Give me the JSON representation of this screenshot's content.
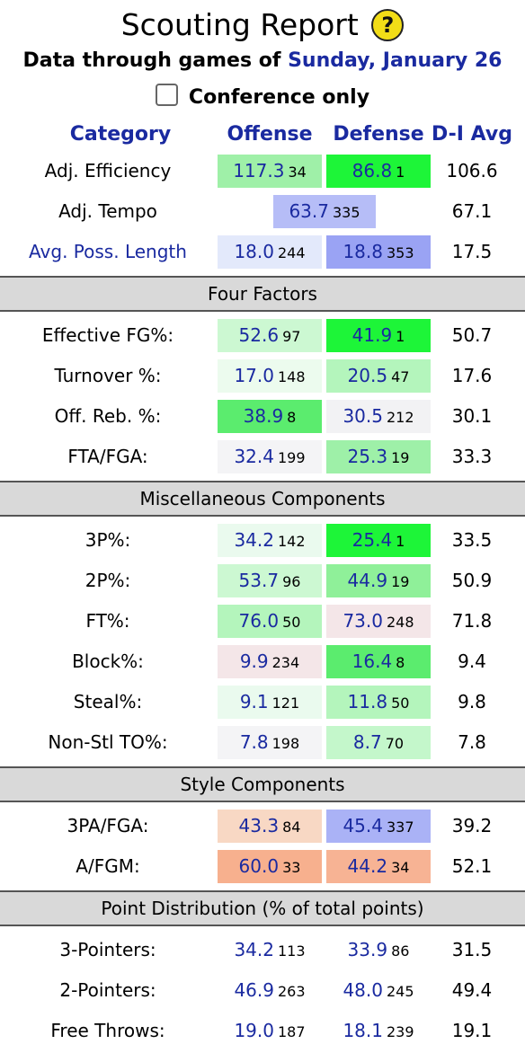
{
  "header": {
    "title": "Scouting Report",
    "help_icon": "question-icon",
    "subtitle_prefix": "Data through games of ",
    "subtitle_date": "Sunday, January 26",
    "conference_label": "Conference only",
    "conference_checked": false
  },
  "columns": {
    "category": "Category",
    "offense": "Offense",
    "defense": "Defense",
    "avg": "D-I Avg"
  },
  "summary_rows": [
    {
      "label": "Adj. Efficiency",
      "off": "117.3",
      "off_rank": "34",
      "def": "86.8",
      "def_rank": "1",
      "avg": "106.6",
      "off_color": "#9ff0a8",
      "def_color": "#1df538"
    },
    {
      "label": "Adj. Tempo",
      "tempo": "63.7",
      "tempo_rank": "335",
      "avg": "67.1",
      "tempo_color": "#b6bdf7"
    },
    {
      "label": "Avg. Poss. Length",
      "off": "18.0",
      "off_rank": "244",
      "def": "18.8",
      "def_rank": "353",
      "avg": "17.5",
      "off_color": "#e3e9fb",
      "def_color": "#9aa3f4"
    }
  ],
  "sections": [
    {
      "title": "Four Factors",
      "rows": [
        {
          "label": "Effective FG%:",
          "off": "52.6",
          "off_rank": "97",
          "def": "41.9",
          "def_rank": "1",
          "avg": "50.7",
          "off_color": "#ccf8d2",
          "def_color": "#1df538"
        },
        {
          "label": "Turnover %:",
          "off": "17.0",
          "off_rank": "148",
          "def": "20.5",
          "def_rank": "47",
          "avg": "17.6",
          "off_color": "#ecfbee",
          "def_color": "#b4f5bc"
        },
        {
          "label": "Off. Reb. %:",
          "off": "38.9",
          "off_rank": "8",
          "def": "30.5",
          "def_rank": "212",
          "avg": "30.1",
          "off_color": "#5bec6e",
          "def_color": "#f2f2f4"
        },
        {
          "label": "FTA/FGA:",
          "off": "32.4",
          "off_rank": "199",
          "def": "25.3",
          "def_rank": "19",
          "avg": "33.3",
          "off_color": "#f4f4f6",
          "def_color": "#9ef0a8"
        }
      ]
    },
    {
      "title": "Miscellaneous Components",
      "rows": [
        {
          "label": "3P%:",
          "off": "34.2",
          "off_rank": "142",
          "def": "25.4",
          "def_rank": "1",
          "avg": "33.5",
          "off_color": "#eafaee",
          "def_color": "#1df538"
        },
        {
          "label": "2P%:",
          "off": "53.7",
          "off_rank": "96",
          "def": "44.9",
          "def_rank": "19",
          "avg": "50.9",
          "off_color": "#ccf8d2",
          "def_color": "#8ff099"
        },
        {
          "label": "FT%:",
          "off": "76.0",
          "off_rank": "50",
          "def": "73.0",
          "def_rank": "248",
          "avg": "71.8",
          "off_color": "#b4f5bc",
          "def_color": "#f4e6e8"
        },
        {
          "label": "Block%:",
          "off": "9.9",
          "off_rank": "234",
          "def": "16.4",
          "def_rank": "8",
          "avg": "9.4",
          "off_color": "#f4e6e8",
          "def_color": "#5bec6e"
        },
        {
          "label": "Steal%:",
          "off": "9.1",
          "off_rank": "121",
          "def": "11.8",
          "def_rank": "50",
          "avg": "9.8",
          "off_color": "#eafaee",
          "def_color": "#b4f5bc"
        },
        {
          "label": "Non-Stl TO%:",
          "off": "7.8",
          "off_rank": "198",
          "def": "8.7",
          "def_rank": "70",
          "avg": "7.8",
          "off_color": "#f4f4f6",
          "def_color": "#c4f7cb"
        }
      ]
    },
    {
      "title": "Style Components",
      "rows": [
        {
          "label": "3PA/FGA:",
          "off": "43.3",
          "off_rank": "84",
          "def": "45.4",
          "def_rank": "337",
          "avg": "39.2",
          "off_color": "#f8d8c4",
          "def_color": "#aab2f6"
        },
        {
          "label": "A/FGM:",
          "off": "60.0",
          "off_rank": "33",
          "def": "44.2",
          "def_rank": "34",
          "avg": "52.1",
          "off_color": "#f7b08e",
          "def_color": "#f7b394"
        }
      ]
    },
    {
      "title": "Point Distribution (% of total points)",
      "rows": [
        {
          "label": "3-Pointers:",
          "off": "34.2",
          "off_rank": "113",
          "def": "33.9",
          "def_rank": "86",
          "avg": "31.5"
        },
        {
          "label": "2-Pointers:",
          "off": "46.9",
          "off_rank": "263",
          "def": "48.0",
          "def_rank": "245",
          "avg": "49.4"
        },
        {
          "label": "Free Throws:",
          "off": "19.0",
          "off_rank": "187",
          "def": "18.1",
          "def_rank": "239",
          "avg": "19.1"
        }
      ]
    }
  ]
}
